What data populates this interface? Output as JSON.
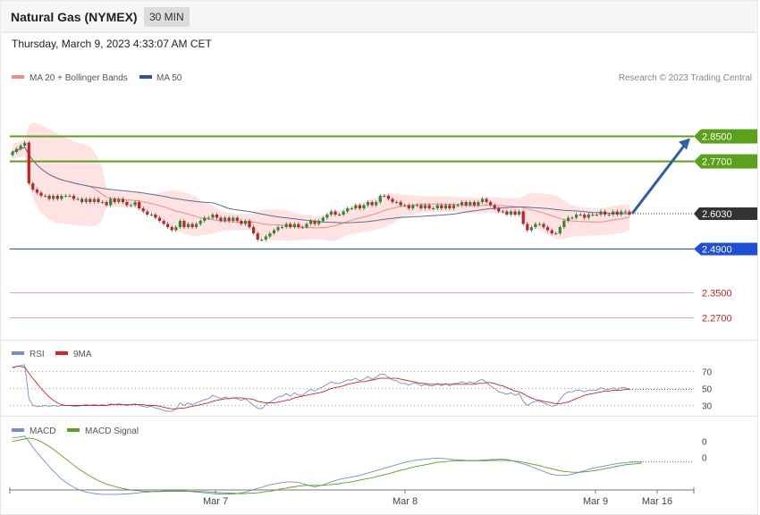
{
  "header": {
    "title": "Natural Gas (NYMEX)",
    "timeframe": "30 MIN"
  },
  "timestamp": "Thursday, March 9, 2023 4:33:07 AM CET",
  "colors": {
    "candle_up": "#2f8a2f",
    "candle_down": "#c81e1e",
    "band_fill": "#ffdede",
    "ma20": "#f28b82",
    "ma50": "#5a6f95",
    "resistance": "#5aa21a",
    "support": "#1f4fd6",
    "level_red": "#f2a0a0",
    "last": "#333333",
    "arrow": "#2f5fa6",
    "rsi": "#6f8fd6",
    "rsi_ma": "#e02020",
    "macd": "#6f8fd6",
    "macd_signal": "#5aa21a"
  },
  "chart_data": [
    {
      "type": "candlestick",
      "title": "",
      "legend": [
        {
          "label": "MA 20 + Bollinger Bands",
          "color": "#f28b82"
        },
        {
          "label": "MA 50",
          "color": "#2f5597"
        }
      ],
      "credit": "Research © 2023 Trading Central",
      "x_labels": [
        "Mar 7",
        "Mar 8",
        "Mar 9",
        "Mar 16"
      ],
      "ylim": [
        2.2,
        3.0
      ],
      "close": [
        2.8,
        2.81,
        2.82,
        2.83,
        2.7,
        2.68,
        2.67,
        2.66,
        2.66,
        2.65,
        2.66,
        2.65,
        2.66,
        2.66,
        2.66,
        2.65,
        2.65,
        2.64,
        2.65,
        2.64,
        2.65,
        2.64,
        2.64,
        2.63,
        2.65,
        2.64,
        2.65,
        2.64,
        2.63,
        2.63,
        2.64,
        2.62,
        2.61,
        2.6,
        2.6,
        2.59,
        2.58,
        2.57,
        2.56,
        2.55,
        2.56,
        2.58,
        2.56,
        2.57,
        2.56,
        2.57,
        2.58,
        2.59,
        2.59,
        2.6,
        2.59,
        2.58,
        2.59,
        2.58,
        2.59,
        2.58,
        2.57,
        2.58,
        2.56,
        2.54,
        2.52,
        2.52,
        2.53,
        2.54,
        2.55,
        2.56,
        2.56,
        2.57,
        2.56,
        2.57,
        2.56,
        2.56,
        2.57,
        2.58,
        2.57,
        2.58,
        2.59,
        2.6,
        2.61,
        2.6,
        2.6,
        2.61,
        2.62,
        2.62,
        2.63,
        2.62,
        2.63,
        2.64,
        2.63,
        2.64,
        2.66,
        2.66,
        2.65,
        2.64,
        2.64,
        2.63,
        2.63,
        2.62,
        2.63,
        2.63,
        2.62,
        2.63,
        2.62,
        2.62,
        2.63,
        2.62,
        2.63,
        2.62,
        2.63,
        2.63,
        2.64,
        2.63,
        2.64,
        2.63,
        2.64,
        2.65,
        2.64,
        2.63,
        2.62,
        2.61,
        2.61,
        2.6,
        2.61,
        2.6,
        2.61,
        2.57,
        2.55,
        2.56,
        2.57,
        2.57,
        2.56,
        2.55,
        2.54,
        2.54,
        2.56,
        2.58,
        2.59,
        2.59,
        2.6,
        2.6,
        2.59,
        2.6,
        2.6,
        2.6,
        2.61,
        2.6,
        2.6,
        2.61,
        2.6,
        2.61,
        2.61,
        2.6
      ],
      "indicators": [
        "MA 20",
        "Bollinger Bands",
        "MA 50"
      ],
      "levels": [
        {
          "value": 2.85,
          "label": "2.8500",
          "kind": "resistance"
        },
        {
          "value": 2.77,
          "label": "2.7700",
          "kind": "resistance"
        },
        {
          "value": 2.603,
          "label": "2.6030",
          "kind": "last"
        },
        {
          "value": 2.49,
          "label": "2.4900",
          "kind": "support"
        },
        {
          "value": 2.35,
          "label": "2.3500",
          "kind": "level"
        },
        {
          "value": 2.27,
          "label": "2.2700",
          "kind": "level"
        }
      ],
      "forecast_arrow": {
        "from": 2.603,
        "to": 2.85
      }
    },
    {
      "type": "line",
      "legend": [
        {
          "label": "RSI",
          "color": "#6f8fd6"
        },
        {
          "label": "9MA",
          "color": "#e02020"
        }
      ],
      "ylim": [
        20,
        80
      ],
      "y_ticks": [
        {
          "value": 70,
          "label": "70"
        },
        {
          "value": 50,
          "label": "50"
        },
        {
          "value": 30,
          "label": "30"
        }
      ],
      "series": [
        {
          "name": "RSI",
          "values": [
            74,
            76,
            77,
            78,
            38,
            30,
            29,
            29,
            30,
            29,
            30,
            29,
            30,
            30,
            30,
            29,
            29,
            30,
            31,
            30,
            31,
            30,
            31,
            30,
            32,
            31,
            32,
            31,
            30,
            31,
            32,
            30,
            29,
            28,
            29,
            27,
            26,
            24,
            23,
            23,
            26,
            33,
            30,
            33,
            31,
            33,
            35,
            37,
            38,
            42,
            40,
            38,
            40,
            38,
            39,
            38,
            36,
            38,
            34,
            30,
            27,
            26,
            31,
            34,
            37,
            40,
            41,
            44,
            41,
            45,
            42,
            42,
            46,
            49,
            47,
            50,
            52,
            55,
            58,
            56,
            56,
            58,
            60,
            60,
            62,
            59,
            61,
            64,
            61,
            63,
            67,
            67,
            63,
            60,
            59,
            56,
            56,
            54,
            56,
            56,
            53,
            55,
            53,
            53,
            56,
            53,
            56,
            53,
            56,
            56,
            58,
            56,
            58,
            56,
            59,
            61,
            57,
            53,
            50,
            46,
            45,
            43,
            45,
            42,
            44,
            35,
            30,
            33,
            35,
            35,
            33,
            31,
            29,
            30,
            37,
            43,
            46,
            46,
            48,
            48,
            46,
            48,
            48,
            48,
            51,
            49,
            49,
            51,
            49,
            51,
            51,
            49
          ]
        },
        {
          "name": "9MA",
          "values": [
            75,
            76,
            76,
            75,
            68,
            62,
            56,
            50,
            45,
            40,
            36,
            33,
            31,
            30,
            30,
            30,
            30,
            30,
            30,
            30,
            30,
            30,
            30,
            30,
            31,
            31,
            31,
            31,
            31,
            31,
            31,
            31,
            31,
            30,
            30,
            30,
            29,
            28,
            27,
            26,
            26,
            27,
            27,
            28,
            29,
            30,
            31,
            32,
            33,
            35,
            36,
            37,
            38,
            38,
            39,
            39,
            39,
            38,
            38,
            37,
            35,
            34,
            33,
            33,
            33,
            34,
            35,
            36,
            37,
            39,
            40,
            41,
            42,
            43,
            44,
            45,
            46,
            48,
            50,
            51,
            52,
            53,
            55,
            56,
            57,
            58,
            58,
            59,
            60,
            61,
            62,
            62,
            62,
            62,
            62,
            61,
            60,
            59,
            58,
            57,
            56,
            56,
            55,
            55,
            55,
            55,
            55,
            55,
            55,
            55,
            55,
            55,
            55,
            55,
            56,
            56,
            57,
            57,
            56,
            54,
            53,
            51,
            49,
            47,
            46,
            44,
            41,
            39,
            37,
            36,
            35,
            34,
            33,
            32,
            32,
            33,
            34,
            36,
            38,
            40,
            42,
            43,
            44,
            45,
            46,
            47,
            47,
            48,
            48,
            48,
            49,
            49
          ]
        }
      ]
    },
    {
      "type": "line",
      "legend": [
        {
          "label": "MACD",
          "color": "#6f8fd6"
        },
        {
          "label": "MACD Signal",
          "color": "#5aa21a"
        }
      ],
      "y_ticks": [
        {
          "value": 0.04,
          "label": "0"
        },
        {
          "value": 0,
          "label": "0"
        }
      ],
      "ylim": [
        -0.11,
        0.08
      ],
      "series": [
        {
          "name": "MACD",
          "values": [
            0.05,
            0.05,
            0.052,
            0.053,
            0.04,
            0.025,
            0.012,
            0.0,
            -0.012,
            -0.024,
            -0.035,
            -0.045,
            -0.055,
            -0.063,
            -0.07,
            -0.076,
            -0.081,
            -0.085,
            -0.088,
            -0.09,
            -0.092,
            -0.093,
            -0.094,
            -0.094,
            -0.094,
            -0.094,
            -0.094,
            -0.093,
            -0.093,
            -0.092,
            -0.091,
            -0.09,
            -0.089,
            -0.088,
            -0.087,
            -0.086,
            -0.086,
            -0.085,
            -0.085,
            -0.085,
            -0.085,
            -0.085,
            -0.085,
            -0.086,
            -0.087,
            -0.088,
            -0.089,
            -0.09,
            -0.091,
            -0.092,
            -0.093,
            -0.093,
            -0.093,
            -0.093,
            -0.093,
            -0.092,
            -0.09,
            -0.088,
            -0.085,
            -0.082,
            -0.079,
            -0.076,
            -0.073,
            -0.07,
            -0.068,
            -0.066,
            -0.064,
            -0.063,
            -0.062,
            -0.063,
            -0.064,
            -0.067,
            -0.07,
            -0.073,
            -0.075,
            -0.073,
            -0.07,
            -0.066,
            -0.062,
            -0.059,
            -0.056,
            -0.054,
            -0.052,
            -0.05,
            -0.048,
            -0.046,
            -0.043,
            -0.04,
            -0.037,
            -0.034,
            -0.031,
            -0.028,
            -0.025,
            -0.022,
            -0.019,
            -0.016,
            -0.013,
            -0.011,
            -0.009,
            -0.007,
            -0.006,
            -0.005,
            -0.004,
            -0.003,
            -0.002,
            -0.003,
            -0.004,
            -0.005,
            -0.006,
            -0.007,
            -0.007,
            -0.008,
            -0.008,
            -0.008,
            -0.008,
            -0.007,
            -0.007,
            -0.006,
            -0.006,
            -0.005,
            -0.005,
            -0.006,
            -0.008,
            -0.011,
            -0.014,
            -0.017,
            -0.02,
            -0.024,
            -0.028,
            -0.032,
            -0.036,
            -0.04,
            -0.043,
            -0.045,
            -0.046,
            -0.046,
            -0.045,
            -0.043,
            -0.04,
            -0.037,
            -0.034,
            -0.031,
            -0.028,
            -0.026,
            -0.024,
            -0.022,
            -0.02,
            -0.018,
            -0.016,
            -0.015,
            -0.014,
            -0.013,
            -0.012,
            -0.012,
            -0.012
          ]
        },
        {
          "name": "MACD Signal",
          "values": [
            0.04,
            0.042,
            0.044,
            0.046,
            0.048,
            0.047,
            0.044,
            0.039,
            0.033,
            0.027,
            0.02,
            0.012,
            0.004,
            -0.004,
            -0.012,
            -0.02,
            -0.028,
            -0.035,
            -0.042,
            -0.048,
            -0.054,
            -0.059,
            -0.064,
            -0.068,
            -0.071,
            -0.074,
            -0.077,
            -0.079,
            -0.081,
            -0.083,
            -0.084,
            -0.085,
            -0.086,
            -0.086,
            -0.087,
            -0.087,
            -0.087,
            -0.087,
            -0.086,
            -0.086,
            -0.086,
            -0.086,
            -0.086,
            -0.086,
            -0.086,
            -0.086,
            -0.087,
            -0.087,
            -0.088,
            -0.088,
            -0.089,
            -0.09,
            -0.09,
            -0.091,
            -0.091,
            -0.092,
            -0.092,
            -0.092,
            -0.091,
            -0.091,
            -0.09,
            -0.089,
            -0.087,
            -0.086,
            -0.084,
            -0.082,
            -0.08,
            -0.078,
            -0.076,
            -0.075,
            -0.073,
            -0.072,
            -0.071,
            -0.071,
            -0.071,
            -0.071,
            -0.071,
            -0.07,
            -0.069,
            -0.068,
            -0.067,
            -0.065,
            -0.064,
            -0.062,
            -0.06,
            -0.058,
            -0.056,
            -0.054,
            -0.052,
            -0.049,
            -0.047,
            -0.044,
            -0.042,
            -0.039,
            -0.036,
            -0.033,
            -0.031,
            -0.028,
            -0.025,
            -0.023,
            -0.021,
            -0.019,
            -0.017,
            -0.015,
            -0.013,
            -0.012,
            -0.011,
            -0.01,
            -0.009,
            -0.009,
            -0.009,
            -0.009,
            -0.009,
            -0.009,
            -0.009,
            -0.009,
            -0.009,
            -0.008,
            -0.008,
            -0.008,
            -0.008,
            -0.008,
            -0.009,
            -0.01,
            -0.011,
            -0.013,
            -0.015,
            -0.017,
            -0.019,
            -0.021,
            -0.024,
            -0.027,
            -0.029,
            -0.032,
            -0.034,
            -0.036,
            -0.037,
            -0.038,
            -0.038,
            -0.038,
            -0.037,
            -0.036,
            -0.034,
            -0.033,
            -0.031,
            -0.029,
            -0.027,
            -0.025,
            -0.023,
            -0.021,
            -0.019,
            -0.018,
            -0.017,
            -0.016,
            -0.015
          ]
        }
      ]
    }
  ]
}
